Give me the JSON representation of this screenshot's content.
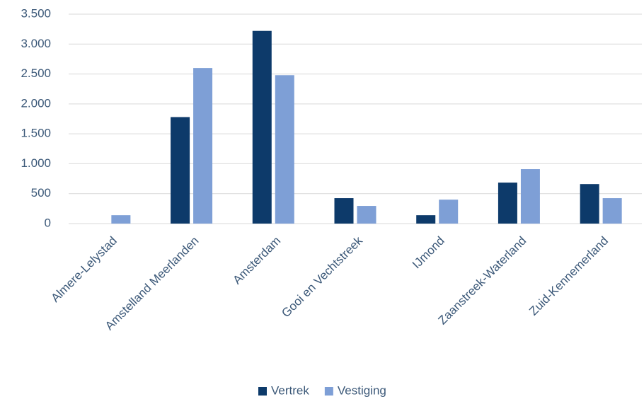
{
  "chart_data": {
    "type": "bar",
    "categories": [
      "Almere-Lelystad",
      "Amstelland Meerlanden",
      "Amsterdam",
      "Gooi en Vechtstreek",
      "IJmond",
      "Zaanstreek-Waterland",
      "Zuid-Kennemerland"
    ],
    "series": [
      {
        "name": "Vertrek",
        "color": "#0d3a6a",
        "values": [
          0,
          1780,
          3220,
          425,
          140,
          685,
          660
        ]
      },
      {
        "name": "Vestiging",
        "color": "#7e9fd6",
        "values": [
          140,
          2600,
          2480,
          295,
          400,
          910,
          425
        ]
      }
    ],
    "ylim": [
      0,
      3500
    ],
    "yticks": [
      0,
      500,
      {
        "value": 1000,
        "label": "1.000"
      },
      {
        "value": 1500,
        "label": "1.500"
      },
      {
        "value": 2000,
        "label": "2.000"
      },
      {
        "value": 2500,
        "label": "2.500"
      },
      {
        "value": 3000,
        "label": "3.000"
      },
      {
        "value": 3500,
        "label": "3.500"
      }
    ],
    "grid": true,
    "legend": "bottom"
  }
}
